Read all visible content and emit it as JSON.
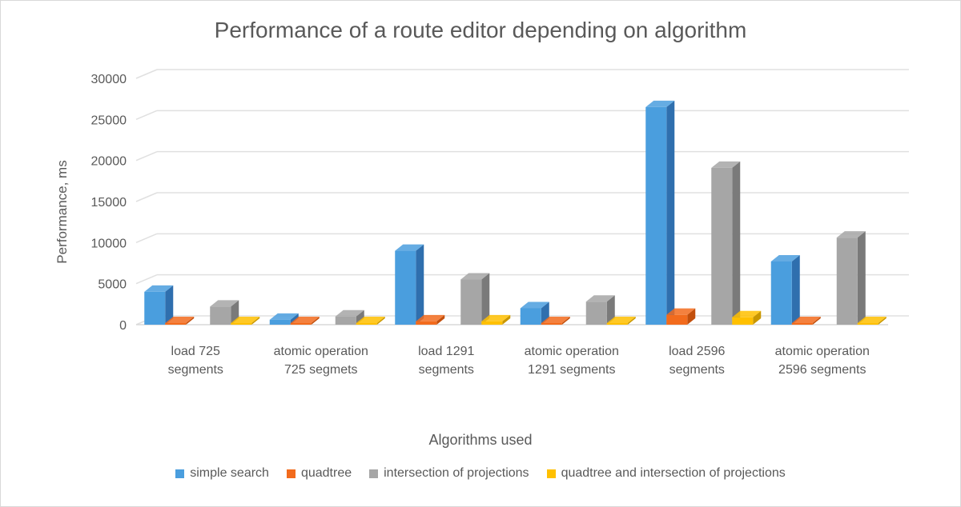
{
  "chart_data": {
    "type": "bar",
    "title": "Performance of a route editor depending on algorithm",
    "xlabel": "Algorithms used",
    "ylabel": "Performance, ms",
    "ylim": [
      0,
      30000
    ],
    "yticks": [
      0,
      5000,
      10000,
      15000,
      20000,
      25000,
      30000
    ],
    "grid": true,
    "legend_position": "bottom",
    "categories": [
      "load 725 segments",
      "atomic operation 725 segmets",
      "load 1291 segments",
      "atomic operation 1291 segments",
      "load 2596 segments",
      "atomic operation 2596 segments"
    ],
    "series": [
      {
        "name": "simple search",
        "color": "#4a9ede",
        "dark": "#2f6fae",
        "values": [
          4000,
          600,
          9000,
          2000,
          26500,
          7700
        ]
      },
      {
        "name": "quadtree",
        "color": "#f26b1d",
        "dark": "#c24f0c",
        "values": [
          200,
          100,
          400,
          100,
          1200,
          100
        ]
      },
      {
        "name": "intersection of projections",
        "color": "#a6a6a6",
        "dark": "#7a7a7a",
        "values": [
          2200,
          1000,
          5500,
          2800,
          19100,
          10600
        ]
      },
      {
        "name": "quadtree and intersection of projections",
        "color": "#ffc000",
        "dark": "#c99700",
        "values": [
          150,
          100,
          400,
          100,
          900,
          100
        ]
      }
    ]
  }
}
